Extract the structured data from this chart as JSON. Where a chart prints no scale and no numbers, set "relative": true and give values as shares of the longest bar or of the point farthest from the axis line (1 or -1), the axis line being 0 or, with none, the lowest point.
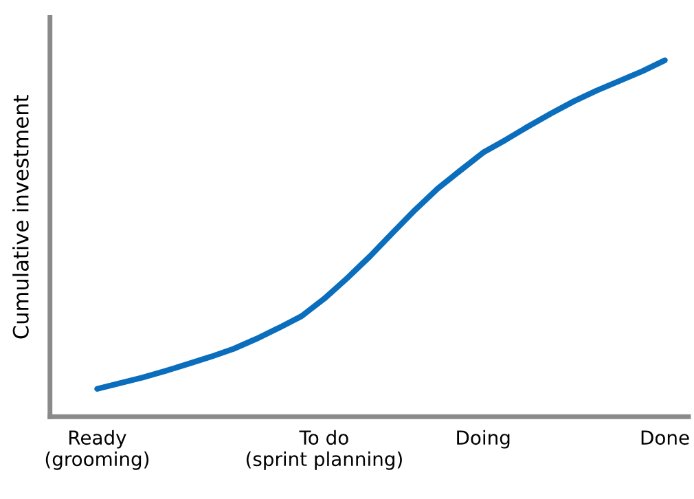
{
  "chart_data": {
    "type": "line",
    "relative": true,
    "ylabel": "Cumulative investment",
    "categories": [
      "Ready\n(grooming)",
      null,
      null,
      null,
      null,
      null,
      null,
      null,
      null,
      null,
      "To do\n(sprint planning)",
      null,
      null,
      null,
      null,
      null,
      null,
      "Doing",
      null,
      null,
      null,
      null,
      null,
      null,
      null,
      "Done"
    ],
    "series": [
      {
        "color": "#0a6ebd",
        "values": [
          0.078,
          0.094,
          0.11,
          0.128,
          0.148,
          0.168,
          0.19,
          0.218,
          0.249,
          0.282,
          0.331,
          0.388,
          0.449,
          0.515,
          0.58,
          0.64,
          0.691,
          0.741,
          0.777,
          0.815,
          0.851,
          0.885,
          0.915,
          0.942,
          0.969,
          1.0
        ]
      }
    ],
    "grid": false,
    "marker": "none",
    "line_style": "solid"
  }
}
